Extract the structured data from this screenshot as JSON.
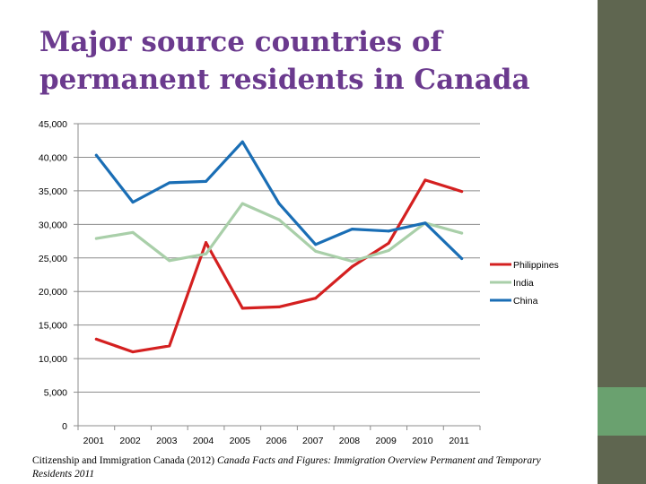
{
  "slide": {
    "title": "Major source countries of permanent residents in Canada"
  },
  "citation": {
    "authors": "Citizenship and Immigration Canada (2012)",
    "work": "Canada Facts and Figures: Immigration Overview Permanent and Temporary Residents 2011"
  },
  "chart_data": {
    "type": "line",
    "title": "",
    "xlabel": "",
    "ylabel": "",
    "x": [
      "2001",
      "2002",
      "2003",
      "2004",
      "2005",
      "2006",
      "2007",
      "2008",
      "2009",
      "2010",
      "2011"
    ],
    "ylim": [
      0,
      45000
    ],
    "yticks": [
      0,
      5000,
      10000,
      15000,
      20000,
      25000,
      30000,
      35000,
      40000,
      45000
    ],
    "ytick_labels": [
      "0",
      "5,000",
      "10,000",
      "15,000",
      "20,000",
      "25,000",
      "30,000",
      "35,000",
      "40,000",
      "45,000"
    ],
    "grid": true,
    "legend_position": "right",
    "series": [
      {
        "name": "Philippines",
        "color": "#d42020",
        "values": [
          12900,
          11000,
          11900,
          27300,
          17500,
          17700,
          19000,
          23700,
          27200,
          36600,
          34900
        ]
      },
      {
        "name": "India",
        "color": "#a9cfa9",
        "values": [
          27900,
          28800,
          24600,
          25600,
          33100,
          30700,
          26000,
          24500,
          26100,
          30200,
          28700
        ]
      },
      {
        "name": "China",
        "color": "#1a6eb5",
        "values": [
          40300,
          33300,
          36200,
          36400,
          42300,
          33100,
          27000,
          29300,
          29000,
          30200,
          24900
        ]
      }
    ]
  }
}
